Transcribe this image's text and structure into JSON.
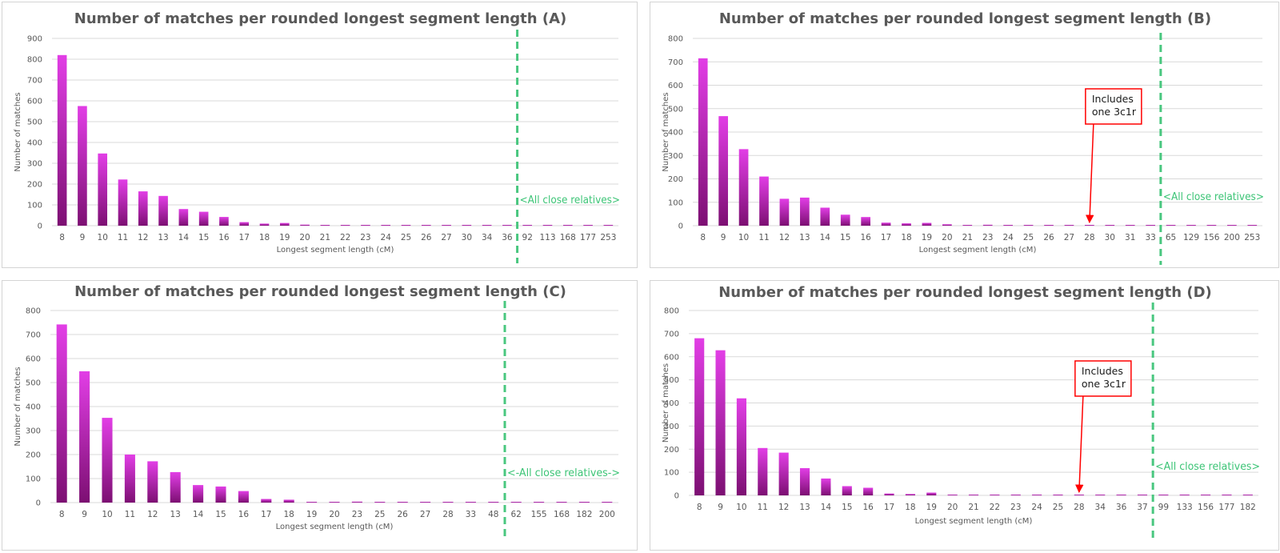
{
  "colors": {
    "bar_top": "#e23ee6",
    "bar_bottom": "#7c0f72",
    "grid": "#d9d9d9",
    "text": "#595959",
    "divider": "#49c77f",
    "annotation": "#ff0000"
  },
  "chart_data": [
    {
      "id": "A",
      "type": "bar",
      "title": "Number of matches per rounded longest segment length (A)",
      "xlabel": "Longest segment length (cM)",
      "ylabel": "Number of matches",
      "ylim": [
        0,
        900
      ],
      "yticks": [
        0,
        100,
        200,
        300,
        400,
        500,
        600,
        700,
        800,
        900
      ],
      "categories": [
        "8",
        "9",
        "10",
        "11",
        "12",
        "13",
        "14",
        "15",
        "16",
        "17",
        "18",
        "19",
        "20",
        "21",
        "22",
        "23",
        "24",
        "25",
        "26",
        "27",
        "30",
        "34",
        "36",
        "92",
        "113",
        "168",
        "177",
        "253"
      ],
      "values": [
        820,
        575,
        347,
        222,
        165,
        143,
        80,
        67,
        42,
        17,
        10,
        13,
        5,
        2,
        2,
        2,
        2,
        2,
        2,
        2,
        1,
        1,
        1,
        1,
        1,
        1,
        1,
        1
      ],
      "divider_after_index": 22,
      "region_label": "<All close relatives>",
      "annotation": null
    },
    {
      "id": "B",
      "type": "bar",
      "title": "Number of matches per rounded longest segment length (B)",
      "xlabel": "Longest segment length (cM)",
      "ylabel": "Number of matches",
      "ylim": [
        0,
        800
      ],
      "yticks": [
        0,
        100,
        200,
        300,
        400,
        500,
        600,
        700,
        800
      ],
      "categories": [
        "8",
        "9",
        "10",
        "11",
        "12",
        "13",
        "14",
        "15",
        "16",
        "17",
        "18",
        "19",
        "20",
        "21",
        "23",
        "24",
        "25",
        "26",
        "27",
        "28",
        "30",
        "31",
        "33",
        "65",
        "129",
        "156",
        "200",
        "253"
      ],
      "values": [
        715,
        468,
        327,
        210,
        115,
        120,
        77,
        47,
        37,
        13,
        10,
        12,
        6,
        2,
        4,
        2,
        2,
        2,
        2,
        1,
        1,
        1,
        1,
        1,
        1,
        1,
        1,
        1
      ],
      "divider_after_index": 22,
      "region_label": "<All close relatives>",
      "annotation": {
        "lines": [
          "Includes",
          "one 3c1r"
        ],
        "target_index": 19
      }
    },
    {
      "id": "C",
      "type": "bar",
      "title": "Number of matches per rounded longest segment length (C)",
      "xlabel": "Longest segment length (cM)",
      "ylabel": "Number of matches",
      "ylim": [
        0,
        800
      ],
      "yticks": [
        0,
        100,
        200,
        300,
        400,
        500,
        600,
        700,
        800
      ],
      "categories": [
        "8",
        "9",
        "10",
        "11",
        "12",
        "13",
        "14",
        "15",
        "16",
        "17",
        "18",
        "19",
        "20",
        "23",
        "25",
        "26",
        "27",
        "28",
        "33",
        "48",
        "62",
        "155",
        "168",
        "182",
        "200"
      ],
      "values": [
        742,
        547,
        353,
        200,
        172,
        127,
        73,
        67,
        48,
        15,
        12,
        3,
        2,
        4,
        2,
        2,
        2,
        2,
        2,
        1,
        1,
        1,
        1,
        1,
        1
      ],
      "divider_after_index": 19,
      "region_label": "<-All close relatives->",
      "annotation": null
    },
    {
      "id": "D",
      "type": "bar",
      "title": "Number of matches per rounded longest segment length (D)",
      "xlabel": "Longest segment length (cM)",
      "ylabel": "Number of matches",
      "ylim": [
        0,
        800
      ],
      "yticks": [
        0,
        100,
        200,
        300,
        400,
        500,
        600,
        700,
        800
      ],
      "categories": [
        "8",
        "9",
        "10",
        "11",
        "12",
        "13",
        "14",
        "15",
        "16",
        "17",
        "18",
        "19",
        "20",
        "21",
        "22",
        "23",
        "24",
        "25",
        "28",
        "34",
        "36",
        "37",
        "99",
        "133",
        "156",
        "177",
        "182"
      ],
      "values": [
        680,
        628,
        420,
        205,
        185,
        118,
        73,
        40,
        33,
        8,
        6,
        12,
        2,
        2,
        2,
        2,
        2,
        2,
        1,
        1,
        1,
        1,
        1,
        1,
        1,
        1,
        1
      ],
      "divider_after_index": 21,
      "region_label": "<All close relatives>",
      "annotation": {
        "lines": [
          "Includes",
          "one 3c1r"
        ],
        "target_index": 18
      }
    }
  ]
}
